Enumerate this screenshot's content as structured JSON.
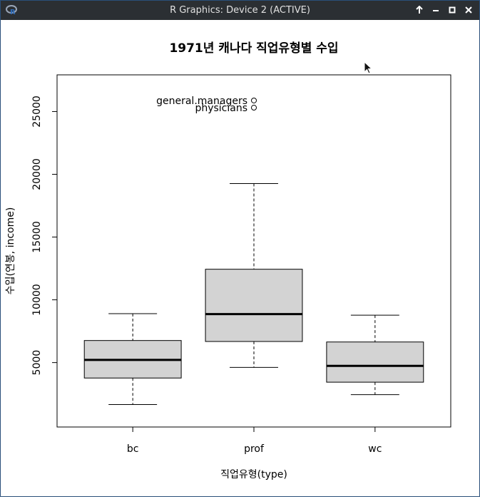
{
  "window": {
    "title": "R Graphics: Device 2 (ACTIVE)",
    "icon": "r-logo-icon",
    "buttons": [
      "arrow-up-icon",
      "minimize-icon",
      "maximize-icon",
      "close-icon"
    ]
  },
  "chart_data": {
    "type": "boxplot",
    "title": "1971년 캐나다 직업유형별 수입",
    "xlabel": "직업유형(type)",
    "ylabel": "수입(연봉, income)",
    "categories": [
      "bc",
      "prof",
      "wc"
    ],
    "yticks": [
      5000,
      10000,
      15000,
      20000,
      25000
    ],
    "ylim": [
      890,
      26900
    ],
    "box_color": "#d3d3d3",
    "boxes": [
      {
        "name": "bc",
        "whisker_low": 1656,
        "q1": 3770,
        "median": 5216,
        "q3": 6758,
        "whisker_high": 8895
      },
      {
        "name": "prof",
        "whisker_low": 4614,
        "q1": 6680,
        "median": 8865,
        "q3": 12436,
        "whisker_high": 19263
      },
      {
        "name": "wc",
        "whisker_low": 2448,
        "q1": 3439,
        "median": 4741,
        "q3": 6641,
        "whisker_high": 8780
      }
    ],
    "outliers": [
      {
        "category": "prof",
        "value": 25879,
        "label": "general.managers"
      },
      {
        "category": "prof",
        "value": 25308,
        "label": "physicians"
      }
    ]
  }
}
